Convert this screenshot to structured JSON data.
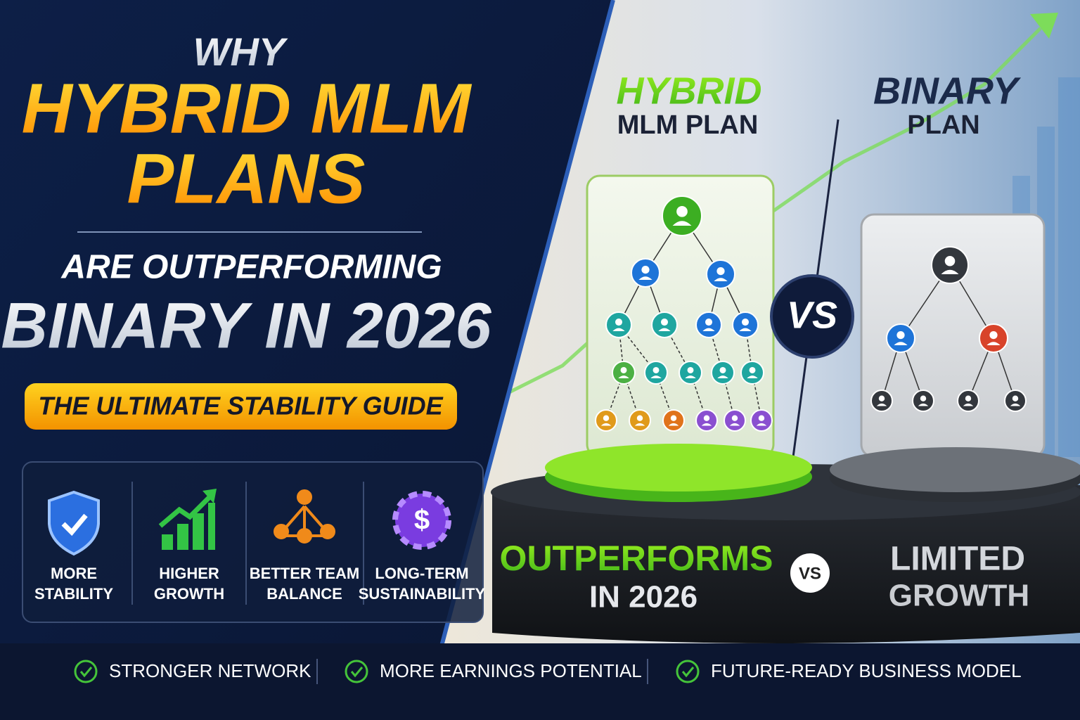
{
  "headline": {
    "line1": "WHY",
    "line2": "HYBRID MLM",
    "line3": "PLANS",
    "line4": "ARE OUTPERFORMING",
    "line5": "BINARY IN 2026"
  },
  "badge": "THE ULTIMATE STABILITY GUIDE",
  "features": [
    {
      "line1": "MORE",
      "line2": "STABILITY"
    },
    {
      "line1": "HIGHER",
      "line2": "GROWTH"
    },
    {
      "line1": "BETTER TEAM",
      "line2": "BALANCE"
    },
    {
      "line1": "LONG-TERM",
      "line2": "SUSTAINABILITY"
    }
  ],
  "comparison": {
    "left": {
      "title1": "HYBRID",
      "title2": "MLM PLAN",
      "verdict1": "OUTPERFORMS",
      "verdict2": "IN 2026"
    },
    "vs": "VS",
    "podium_vs": "VS",
    "right": {
      "title1": "BINARY",
      "title2": "PLAN",
      "verdict1": "LIMITED",
      "verdict2": "GROWTH"
    }
  },
  "benefits": [
    "STRONGER NETWORK",
    "MORE EARNINGS POTENTIAL",
    "FUTURE-READY BUSINESS MODEL"
  ]
}
